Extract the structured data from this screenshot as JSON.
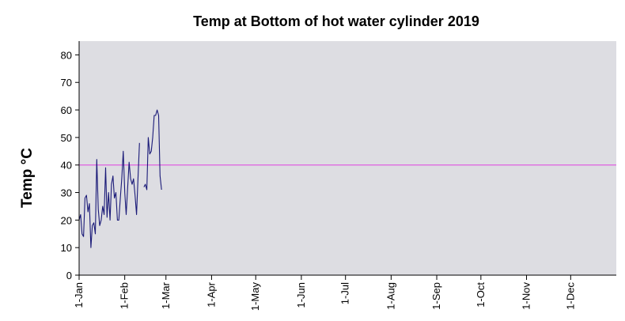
{
  "chart_data": {
    "type": "line",
    "title": "Temp at Bottom of hot water cylinder 2019",
    "xlabel": "",
    "ylabel": "Temp °C",
    "ylim": [
      0,
      85
    ],
    "yticks": [
      0,
      10,
      20,
      30,
      40,
      50,
      60,
      70,
      80
    ],
    "xlim": [
      "2019-01-01",
      "2019-12-31"
    ],
    "xticks": [
      {
        "date": "2019-01-01",
        "label": "1-Jan"
      },
      {
        "date": "2019-02-01",
        "label": "1-Feb"
      },
      {
        "date": "2019-03-01",
        "label": "1-Mar"
      },
      {
        "date": "2019-04-01",
        "label": "1-Apr"
      },
      {
        "date": "2019-05-01",
        "label": "1-May"
      },
      {
        "date": "2019-06-01",
        "label": "1-Jun"
      },
      {
        "date": "2019-07-01",
        "label": "1-Jul"
      },
      {
        "date": "2019-08-01",
        "label": "1-Aug"
      },
      {
        "date": "2019-09-01",
        "label": "1-Sep"
      },
      {
        "date": "2019-10-01",
        "label": "1-Oct"
      },
      {
        "date": "2019-11-01",
        "label": "1-Nov"
      },
      {
        "date": "2019-12-01",
        "label": "1-Dec"
      }
    ],
    "grid": false,
    "legend": "none",
    "colors": {
      "plot_background": "#dddde2",
      "series": "#1a1a78",
      "reference_line": "#e040e0"
    },
    "reference_line": {
      "y": 40
    },
    "series": [
      {
        "segments": [
          [
            {
              "x": "2019-01-01",
              "y": 20
            },
            {
              "x": "2019-01-02",
              "y": 22
            },
            {
              "x": "2019-01-03",
              "y": 15
            },
            {
              "x": "2019-01-04",
              "y": 14
            },
            {
              "x": "2019-01-05",
              "y": 28
            },
            {
              "x": "2019-01-06",
              "y": 29
            },
            {
              "x": "2019-01-07",
              "y": 23
            },
            {
              "x": "2019-01-08",
              "y": 26
            },
            {
              "x": "2019-01-09",
              "y": 10
            },
            {
              "x": "2019-01-10",
              "y": 18
            },
            {
              "x": "2019-01-11",
              "y": 19
            },
            {
              "x": "2019-01-12",
              "y": 15
            },
            {
              "x": "2019-01-13",
              "y": 42
            },
            {
              "x": "2019-01-14",
              "y": 24
            },
            {
              "x": "2019-01-15",
              "y": 18
            },
            {
              "x": "2019-01-16",
              "y": 20
            },
            {
              "x": "2019-01-17",
              "y": 25
            },
            {
              "x": "2019-01-18",
              "y": 22
            },
            {
              "x": "2019-01-19",
              "y": 39
            },
            {
              "x": "2019-01-20",
              "y": 21
            },
            {
              "x": "2019-01-21",
              "y": 30
            },
            {
              "x": "2019-01-22",
              "y": 20
            },
            {
              "x": "2019-01-23",
              "y": 33
            },
            {
              "x": "2019-01-24",
              "y": 36
            },
            {
              "x": "2019-01-25",
              "y": 28
            },
            {
              "x": "2019-01-26",
              "y": 30
            },
            {
              "x": "2019-01-27",
              "y": 20
            },
            {
              "x": "2019-01-28",
              "y": 20
            },
            {
              "x": "2019-01-29",
              "y": 28
            },
            {
              "x": "2019-01-30",
              "y": 35
            },
            {
              "x": "2019-01-31",
              "y": 45
            },
            {
              "x": "2019-02-01",
              "y": 30
            },
            {
              "x": "2019-02-02",
              "y": 22
            },
            {
              "x": "2019-02-03",
              "y": 32
            },
            {
              "x": "2019-02-04",
              "y": 41
            },
            {
              "x": "2019-02-05",
              "y": 35
            },
            {
              "x": "2019-02-06",
              "y": 33
            },
            {
              "x": "2019-02-07",
              "y": 35
            },
            {
              "x": "2019-02-08",
              "y": 29
            },
            {
              "x": "2019-02-09",
              "y": 22
            },
            {
              "x": "2019-02-10",
              "y": 35
            },
            {
              "x": "2019-02-11",
              "y": 48
            }
          ],
          [
            {
              "x": "2019-02-14",
              "y": 32
            },
            {
              "x": "2019-02-15",
              "y": 33
            },
            {
              "x": "2019-02-16",
              "y": 31
            },
            {
              "x": "2019-02-17",
              "y": 50
            },
            {
              "x": "2019-02-18",
              "y": 44
            },
            {
              "x": "2019-02-19",
              "y": 45
            },
            {
              "x": "2019-02-20",
              "y": 50
            },
            {
              "x": "2019-02-21",
              "y": 58
            },
            {
              "x": "2019-02-22",
              "y": 58
            },
            {
              "x": "2019-02-23",
              "y": 60
            },
            {
              "x": "2019-02-24",
              "y": 58
            },
            {
              "x": "2019-02-25",
              "y": 36
            },
            {
              "x": "2019-02-26",
              "y": 31
            }
          ]
        ]
      }
    ]
  }
}
